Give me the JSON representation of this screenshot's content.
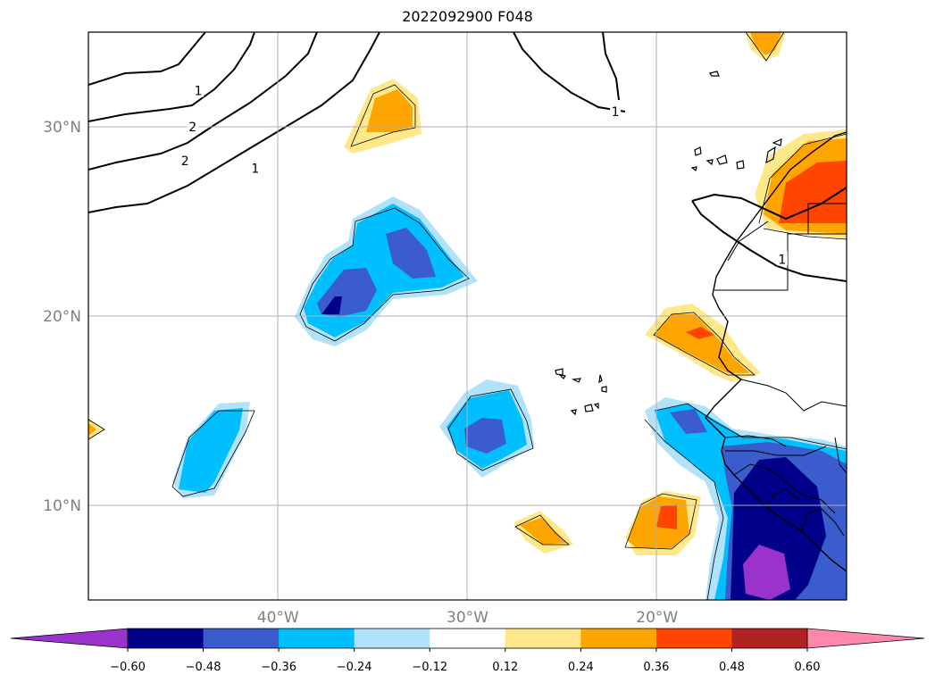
{
  "map": {
    "title": "2022092900 F048",
    "projection": "PlateCarree",
    "lon_range": [
      -50,
      -10
    ],
    "lat_range": [
      5,
      35
    ],
    "gridlines": true,
    "lat_ticks": [
      {
        "value": 30,
        "label": "30°N"
      },
      {
        "value": 20,
        "label": "20°N"
      },
      {
        "value": 10,
        "label": "10°N"
      }
    ],
    "lon_ticks": [
      {
        "value": -40,
        "label": "40°W"
      },
      {
        "value": -30,
        "label": "30°W"
      },
      {
        "value": -20,
        "label": "20°W"
      }
    ],
    "contour_labels": [
      {
        "lon": -44.2,
        "lat": 31.9,
        "text": "1"
      },
      {
        "lon": -44.5,
        "lat": 30.0,
        "text": "2"
      },
      {
        "lon": -44.9,
        "lat": 28.2,
        "text": "2"
      },
      {
        "lon": -41.2,
        "lat": 27.8,
        "text": "1"
      },
      {
        "lon": -22.2,
        "lat": 30.8,
        "text": "1"
      },
      {
        "lon": -13.4,
        "lat": 23.0,
        "text": "1"
      }
    ]
  },
  "colorbar": {
    "levels": [
      "−0.60",
      "−0.48",
      "−0.36",
      "−0.24",
      "−0.12",
      "0.12",
      "0.24",
      "0.36",
      "0.48",
      "0.60"
    ],
    "colors": [
      "#9933cc",
      "#000088",
      "#3a5ccc",
      "#00bfff",
      "#b0e2fa",
      "#ffffff",
      "#ffe88a",
      "#ffa500",
      "#ff4500",
      "#b22222",
      "#ff88aa"
    ],
    "extend": "both",
    "orientation": "horizontal"
  }
}
